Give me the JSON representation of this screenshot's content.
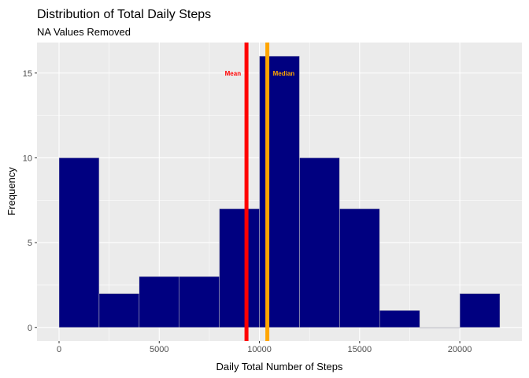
{
  "chart_data": {
    "type": "bar",
    "title": "Distribution of Total Daily Steps",
    "subtitle": "NA Values Removed",
    "xlabel": "Daily Total Number of Steps",
    "ylabel": "Frequency",
    "bins": [
      {
        "start": 0,
        "end": 2000,
        "count": 10
      },
      {
        "start": 2000,
        "end": 4000,
        "count": 2
      },
      {
        "start": 4000,
        "end": 6000,
        "count": 3
      },
      {
        "start": 6000,
        "end": 8000,
        "count": 3
      },
      {
        "start": 8000,
        "end": 10000,
        "count": 7
      },
      {
        "start": 10000,
        "end": 12000,
        "count": 16
      },
      {
        "start": 12000,
        "end": 14000,
        "count": 10
      },
      {
        "start": 14000,
        "end": 16000,
        "count": 7
      },
      {
        "start": 16000,
        "end": 18000,
        "count": 1
      },
      {
        "start": 18000,
        "end": 20000,
        "count": 0
      },
      {
        "start": 20000,
        "end": 22000,
        "count": 2
      }
    ],
    "xlim": [
      -1100,
      23100
    ],
    "ylim": [
      -0.8,
      16.8
    ],
    "xticks": [
      0,
      5000,
      10000,
      15000,
      20000
    ],
    "xtick_labels": [
      "0",
      "5000",
      "10000",
      "15000",
      "20000"
    ],
    "yticks": [
      0,
      5,
      10,
      15
    ],
    "ytick_labels": [
      "0",
      "5",
      "10",
      "15"
    ],
    "vlines": [
      {
        "label": "Mean",
        "x": 9354,
        "color": "#ff0000",
        "label_y": 15
      },
      {
        "label": "Median",
        "x": 10395,
        "color": "#ffa500",
        "label_y": 15
      }
    ],
    "bar_fill": "#000080",
    "bar_outline": "#c8c8c8",
    "panel_background": "#ebebeb",
    "grid_color": "#ffffff",
    "grid": true,
    "legend": "none"
  }
}
